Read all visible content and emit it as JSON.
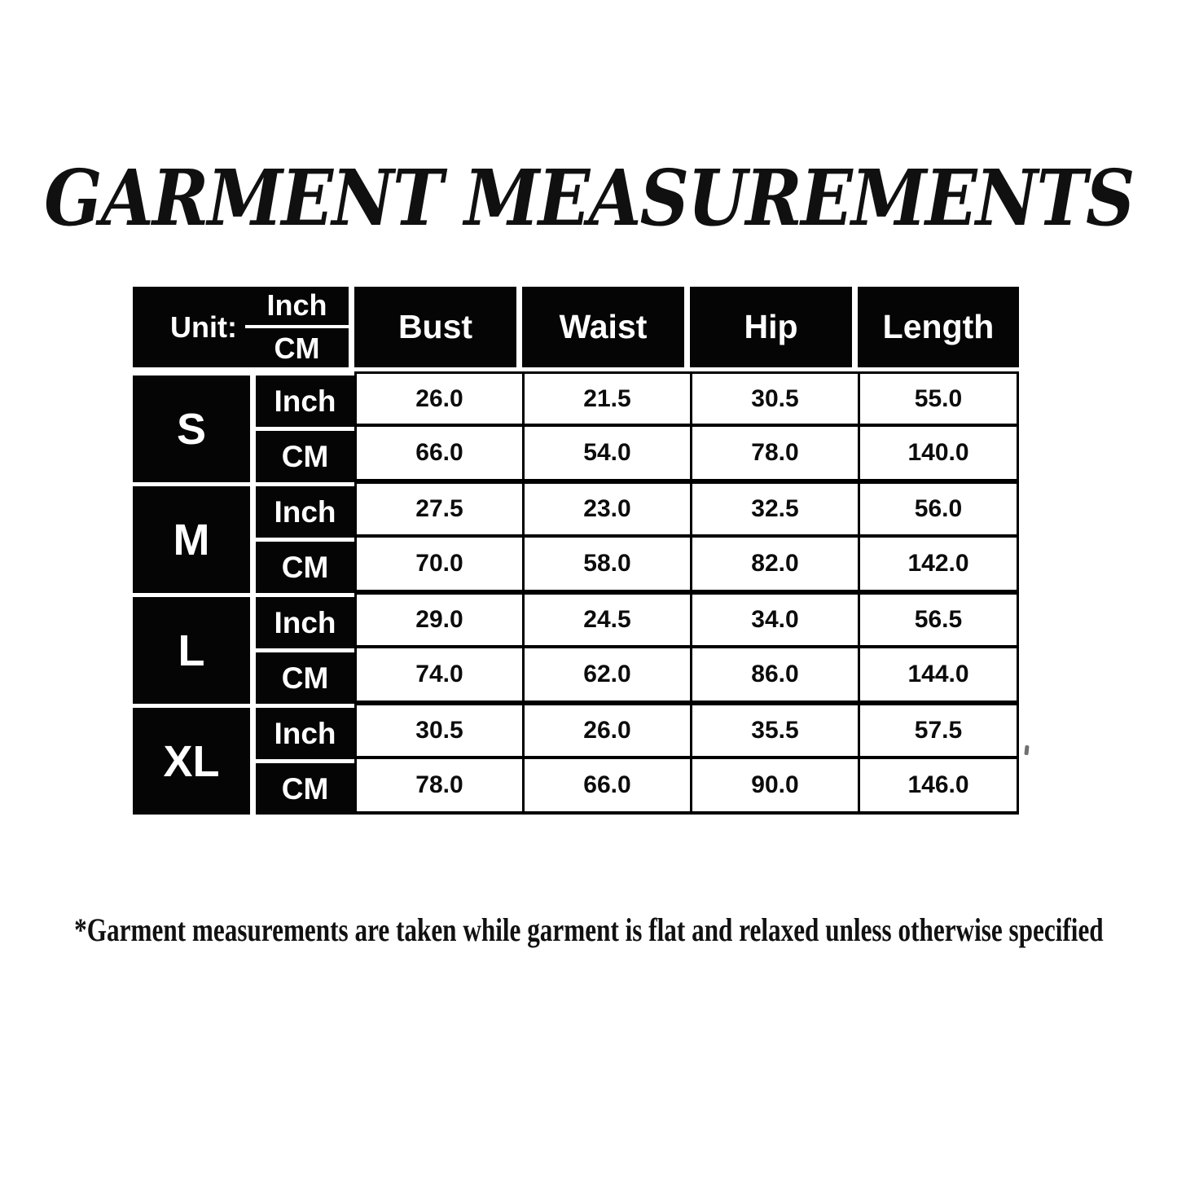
{
  "chart_data": {
    "type": "table",
    "title": "GARMENT MEASUREMENTS",
    "header": {
      "unit_label": "Unit:",
      "unit_options": [
        "Inch",
        "CM"
      ],
      "columns": [
        "Bust",
        "Waist",
        "Hip",
        "Length"
      ]
    },
    "groups": [
      {
        "size": "S",
        "rows": [
          {
            "unit": "Inch",
            "bust": "26.0",
            "waist": "21.5",
            "hip": "30.5",
            "length": "55.0"
          },
          {
            "unit": "CM",
            "bust": "66.0",
            "waist": "54.0",
            "hip": "78.0",
            "length": "140.0"
          }
        ]
      },
      {
        "size": "M",
        "rows": [
          {
            "unit": "Inch",
            "bust": "27.5",
            "waist": "23.0",
            "hip": "32.5",
            "length": "56.0"
          },
          {
            "unit": "CM",
            "bust": "70.0",
            "waist": "58.0",
            "hip": "82.0",
            "length": "142.0"
          }
        ]
      },
      {
        "size": "L",
        "rows": [
          {
            "unit": "Inch",
            "bust": "29.0",
            "waist": "24.5",
            "hip": "34.0",
            "length": "56.5"
          },
          {
            "unit": "CM",
            "bust": "74.0",
            "waist": "62.0",
            "hip": "86.0",
            "length": "144.0"
          }
        ]
      },
      {
        "size": "XL",
        "rows": [
          {
            "unit": "Inch",
            "bust": "30.5",
            "waist": "26.0",
            "hip": "35.5",
            "length": "57.5"
          },
          {
            "unit": "CM",
            "bust": "78.0",
            "waist": "66.0",
            "hip": "90.0",
            "length": "146.0"
          }
        ]
      }
    ],
    "footnote": "*Garment measurements are taken while garment is flat and relaxed unless otherwise specified",
    "layout": {
      "grid": "on",
      "header_style": "black-cells-white-text",
      "body_style": "white-cells-black-text"
    }
  },
  "colors": {
    "page_background": "#ffffff",
    "cell_black": "#050505",
    "cell_white": "#ffffff",
    "grid_line": "#000000",
    "text_white": "#ffffff",
    "text_black": "#0c0c0c"
  }
}
